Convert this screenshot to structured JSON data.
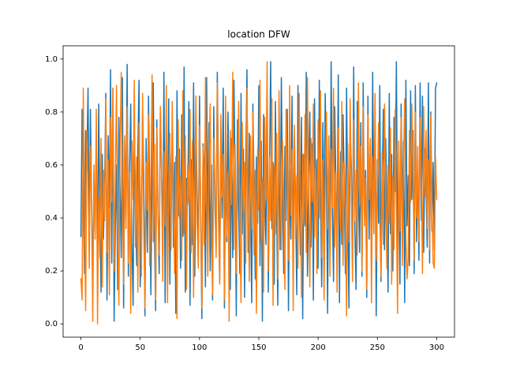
{
  "chart_data": {
    "type": "line",
    "title": "location DFW",
    "xlim": [
      -15,
      315
    ],
    "xticks": [
      0,
      50,
      100,
      150,
      200,
      250,
      300
    ],
    "ylim": [
      -0.05,
      1.05
    ],
    "yticks": [
      {
        "value": 0,
        "label": "0.0"
      },
      0.2,
      0.4,
      0.6,
      0.8,
      {
        "value": 1,
        "label": "1.0"
      }
    ],
    "grid": false,
    "series": [
      {
        "color": "#1f77b4",
        "values": [
          0.33,
          0.81,
          0.52,
          0.19,
          0.73,
          0.62,
          0.89,
          0.28,
          0.81,
          0.46,
          0.15,
          0.57,
          0.35,
          0.72,
          0.19,
          0.83,
          0.41,
          0.12,
          0.64,
          0.32,
          0.53,
          0.87,
          0.09,
          0.71,
          0.44,
          0.96,
          0.23,
          0.89,
          0.01,
          0.36,
          0.6,
          0.13,
          0.78,
          0.51,
          0.25,
          0.93,
          0.06,
          0.69,
          0.42,
          0.98,
          0.18,
          0.59,
          0.83,
          0.31,
          0.07,
          0.72,
          0.47,
          0.22,
          0.65,
          0.92,
          0.14,
          0.38,
          0.81,
          0.56,
          0.03,
          0.7,
          0.27,
          0.86,
          0.49,
          0.11,
          0.63,
          0.91,
          0.34,
          0.05,
          0.77,
          0.43,
          0.19,
          0.82,
          0.58,
          0.26,
          0.95,
          0.08,
          0.67,
          0.37,
          0.85,
          0.15,
          0.52,
          0.74,
          0.29,
          0.61,
          0.04,
          0.88,
          0.41,
          0.66,
          0.21,
          0.79,
          0.33,
          0.97,
          0.12,
          0.55,
          0.45,
          0.84,
          0.07,
          0.62,
          0.3,
          0.91,
          0.18,
          0.71,
          0.5,
          0.24,
          0.86,
          0.39,
          0.02,
          0.68,
          0.57,
          0.14,
          0.93,
          0.35,
          0.76,
          0.2,
          0.6,
          0.09,
          0.82,
          0.44,
          0.28,
          0.95,
          0.53,
          0.16,
          0.73,
          0.4,
          0.89,
          0.06,
          0.64,
          0.31,
          0.8,
          0.48,
          0.13,
          0.7,
          0.25,
          0.92,
          0.57,
          0.03,
          0.77,
          0.42,
          0.19,
          0.87,
          0.34,
          0.66,
          0.1,
          0.59,
          0.96,
          0.27,
          0.72,
          0.45,
          0.08,
          0.83,
          0.52,
          0.17,
          0.63,
          0.38,
          0.9,
          0.22,
          0.69,
          0.01,
          0.79,
          0.47,
          0.3,
          0.88,
          0.12,
          0.56,
          0.99,
          0.36,
          0.61,
          0.15,
          0.84,
          0.43,
          0.07,
          0.74,
          0.28,
          0.93,
          0.5,
          0.19,
          0.67,
          0.39,
          0.81,
          0.05,
          0.58,
          0.32,
          0.86,
          0.24,
          0.71,
          0.46,
          0.11,
          0.9,
          0.55,
          0.26,
          0.78,
          0.02,
          0.64,
          0.37,
          0.95,
          0.18,
          0.53,
          0.8,
          0.29,
          0.68,
          0.09,
          0.85,
          0.41,
          0.62,
          0.21,
          0.92,
          0.48,
          0.14,
          0.76,
          0.33,
          0.87,
          0.57,
          0.04,
          0.7,
          0.26,
          0.99,
          0.43,
          0.16,
          0.82,
          0.51,
          0.36,
          0.94,
          0.08,
          0.65,
          0.3,
          0.79,
          0.55,
          0.19,
          0.89,
          0.42,
          0.06,
          0.73,
          0.6,
          0.23,
          0.97,
          0.35,
          0.13,
          0.84,
          0.49,
          0.27,
          0.76,
          0.18,
          0.91,
          0.4,
          0.58,
          0.1,
          0.86,
          0.32,
          0.67,
          0.21,
          0.95,
          0.45,
          0.74,
          0.03,
          0.62,
          0.38,
          0.9,
          0.16,
          0.53,
          0.81,
          0.28,
          0.7,
          0.44,
          0.12,
          0.87,
          0.34,
          0.64,
          0.2,
          0.78,
          0.5,
          0.99,
          0.25,
          0.59,
          0.15,
          0.83,
          0.41,
          0.69,
          0.08,
          0.92,
          0.37,
          0.56,
          0.22,
          0.88,
          0.47,
          0.73,
          0.19,
          0.9,
          0.31,
          0.62,
          0.24,
          0.91,
          0.39,
          0.86,
          0.27,
          0.66,
          0.52,
          0.29,
          0.91,
          0.23,
          0.8,
          0.35,
          0.61,
          0.28,
          0.89,
          0.91
        ]
      },
      {
        "color": "#ff7f0e",
        "values": [
          0.17,
          0.09,
          0.89,
          0.38,
          0.05,
          0.73,
          0.56,
          0.21,
          0.67,
          0.44,
          0.01,
          0.6,
          0.32,
          0.81,
          0.0,
          0.48,
          0.25,
          0.7,
          0.14,
          0.58,
          0.39,
          0.85,
          0.27,
          0.62,
          0.11,
          0.78,
          0.46,
          0.89,
          0.2,
          0.54,
          0.9,
          0.33,
          0.07,
          0.66,
          0.95,
          0.42,
          0.15,
          0.71,
          0.36,
          0.82,
          0.23,
          0.57,
          0.04,
          0.69,
          0.47,
          0.92,
          0.29,
          0.63,
          0.12,
          0.76,
          0.5,
          0.18,
          0.87,
          0.35,
          0.06,
          0.61,
          0.43,
          0.79,
          0.22,
          0.53,
          0.94,
          0.31,
          0.68,
          0.09,
          0.74,
          0.41,
          0.26,
          0.82,
          0.57,
          0.16,
          0.65,
          0.37,
          0.9,
          0.08,
          0.51,
          0.72,
          0.28,
          0.84,
          0.45,
          0.19,
          0.63,
          0.02,
          0.77,
          0.4,
          0.55,
          0.24,
          0.88,
          0.34,
          0.71,
          0.13,
          0.6,
          0.46,
          0.81,
          0.27,
          0.69,
          0.1,
          0.52,
          0.86,
          0.38,
          0.21,
          0.75,
          0.44,
          0.06,
          0.67,
          0.3,
          0.93,
          0.49,
          0.18,
          0.62,
          0.83,
          0.35,
          0.11,
          0.7,
          0.54,
          0.25,
          0.91,
          0.4,
          0.15,
          0.79,
          0.48,
          0.64,
          0.09,
          0.86,
          0.33,
          0.57,
          0.01,
          0.73,
          0.45,
          0.95,
          0.28,
          0.68,
          0.19,
          0.52,
          0.84,
          0.37,
          0.08,
          0.76,
          0.42,
          0.61,
          0.23,
          0.89,
          0.5,
          0.16,
          0.71,
          0.36,
          0.8,
          0.26,
          0.58,
          0.04,
          0.66,
          0.43,
          0.92,
          0.31,
          0.55,
          0.12,
          0.78,
          0.47,
          0.99,
          0.2,
          0.63,
          0.39,
          0.85,
          0.07,
          0.6,
          0.34,
          0.72,
          0.17,
          0.88,
          0.53,
          0.28,
          0.69,
          0.45,
          0.13,
          0.81,
          0.58,
          0.24,
          0.9,
          0.41,
          0.66,
          0.05,
          0.75,
          0.32,
          0.56,
          0.21,
          0.87,
          0.48,
          0.1,
          0.64,
          0.38,
          0.79,
          0.27,
          0.93,
          0.51,
          0.14,
          0.7,
          0.46,
          0.83,
          0.33,
          0.59,
          0.19,
          0.77,
          0.4,
          0.88,
          0.25,
          0.62,
          0.09,
          0.54,
          0.8,
          0.36,
          0.71,
          0.18,
          0.66,
          0.44,
          0.89,
          0.29,
          0.57,
          0.12,
          0.74,
          0.49,
          0.35,
          0.84,
          0.22,
          0.61,
          0.43,
          0.03,
          0.68,
          0.31,
          0.85,
          0.5,
          0.16,
          0.77,
          0.39,
          0.58,
          0.26,
          0.91,
          0.45,
          0.67,
          0.2,
          0.82,
          0.37,
          0.55,
          0.13,
          0.79,
          0.47,
          0.7,
          0.08,
          0.63,
          0.34,
          0.87,
          0.24,
          0.52,
          0.76,
          0.4,
          0.18,
          0.65,
          0.3,
          0.83,
          0.49,
          0.21,
          0.6,
          0.38,
          0.74,
          0.15,
          0.56,
          0.28,
          0.81,
          0.43,
          0.04,
          0.69,
          0.35,
          0.78,
          0.22,
          0.61,
          0.85,
          0.32,
          0.17,
          0.25,
          0.73,
          0.46,
          0.83,
          0.59,
          0.24,
          0.8,
          0.4,
          0.67,
          0.31,
          0.78,
          0.55,
          0.19,
          0.82,
          0.48,
          0.73,
          0.36,
          0.62,
          0.28,
          0.79,
          0.45,
          0.23,
          0.21,
          0.63,
          0.47
        ]
      }
    ]
  }
}
